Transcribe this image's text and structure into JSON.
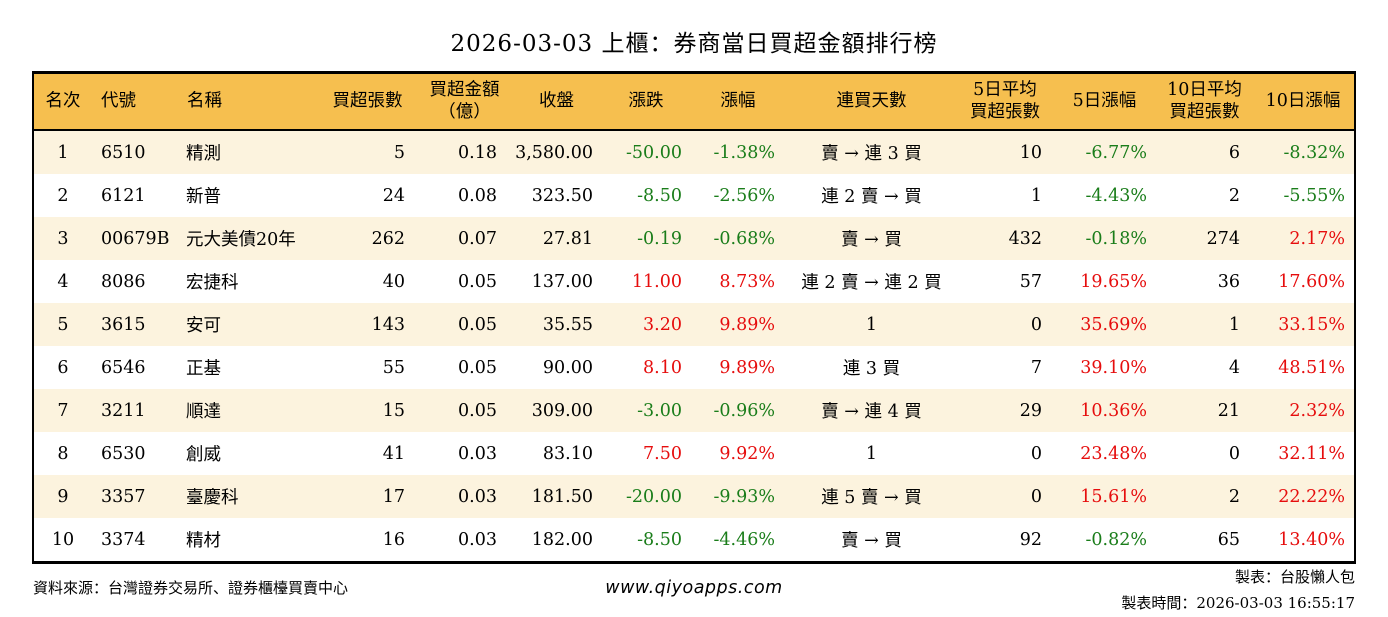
{
  "title": "2026-03-03 上櫃：券商當日買超金額排行榜",
  "colors": {
    "header_bg": "#F6BF4F",
    "row_alt_bg": "#FCF3DE",
    "up_red": "#E60D0D",
    "down_green": "#1A7D1A",
    "border": "#000000"
  },
  "table": {
    "columns": [
      {
        "key": "rank",
        "label": "名次",
        "label2": ""
      },
      {
        "key": "code",
        "label": "代號",
        "label2": ""
      },
      {
        "key": "name",
        "label": "名稱",
        "label2": ""
      },
      {
        "key": "net-buy-lots",
        "label": "買超張數",
        "label2": ""
      },
      {
        "key": "net-buy-amount",
        "label": "買超金額",
        "label2": "（億）"
      },
      {
        "key": "close",
        "label": "收盤",
        "label2": ""
      },
      {
        "key": "change",
        "label": "漲跌",
        "label2": ""
      },
      {
        "key": "change-pct",
        "label": "漲幅",
        "label2": ""
      },
      {
        "key": "buy-streak",
        "label": "連買天數",
        "label2": ""
      },
      {
        "key": "avg5-lots",
        "label": "5日平均",
        "label2": "買超張數"
      },
      {
        "key": "change5-pct",
        "label": "5日漲幅",
        "label2": ""
      },
      {
        "key": "avg10-lots",
        "label": "10日平均",
        "label2": "買超張數"
      },
      {
        "key": "change10-pct",
        "label": "10日漲幅",
        "label2": ""
      }
    ],
    "rows": [
      [
        "1",
        "6510",
        "精測",
        "5",
        "0.18",
        "3,580.00",
        "-50.00",
        "-1.38%",
        "賣 → 連 3 買",
        "10",
        "-6.77%",
        "6",
        "-8.32%"
      ],
      [
        "2",
        "6121",
        "新普",
        "24",
        "0.08",
        "323.50",
        "-8.50",
        "-2.56%",
        "連 2 賣 → 買",
        "1",
        "-4.43%",
        "2",
        "-5.55%"
      ],
      [
        "3",
        "00679B",
        "元大美債20年",
        "262",
        "0.07",
        "27.81",
        "-0.19",
        "-0.68%",
        "賣 → 買",
        "432",
        "-0.18%",
        "274",
        "2.17%"
      ],
      [
        "4",
        "8086",
        "宏捷科",
        "40",
        "0.05",
        "137.00",
        "11.00",
        "8.73%",
        "連 2 賣 → 連 2 買",
        "57",
        "19.65%",
        "36",
        "17.60%"
      ],
      [
        "5",
        "3615",
        "安可",
        "143",
        "0.05",
        "35.55",
        "3.20",
        "9.89%",
        "1",
        "0",
        "35.69%",
        "1",
        "33.15%"
      ],
      [
        "6",
        "6546",
        "正基",
        "55",
        "0.05",
        "90.00",
        "8.10",
        "9.89%",
        "連 3 買",
        "7",
        "39.10%",
        "4",
        "48.51%"
      ],
      [
        "7",
        "3211",
        "順達",
        "15",
        "0.05",
        "309.00",
        "-3.00",
        "-0.96%",
        "賣 → 連 4 買",
        "29",
        "10.36%",
        "21",
        "2.32%"
      ],
      [
        "8",
        "6530",
        "創威",
        "41",
        "0.03",
        "83.10",
        "7.50",
        "9.92%",
        "1",
        "0",
        "23.48%",
        "0",
        "32.11%"
      ],
      [
        "9",
        "3357",
        "臺慶科",
        "17",
        "0.03",
        "181.50",
        "-20.00",
        "-9.93%",
        "連 5 賣 → 買",
        "0",
        "15.61%",
        "2",
        "22.22%"
      ],
      [
        "10",
        "3374",
        "精材",
        "16",
        "0.03",
        "182.00",
        "-8.50",
        "-4.46%",
        "賣 → 買",
        "92",
        "-0.82%",
        "65",
        "13.40%"
      ]
    ]
  },
  "footer": {
    "source": "資料來源：台灣證券交易所、證券櫃檯買賣中心",
    "url": "www.qiyoapps.com",
    "credit": "製表：台股懶人包",
    "timestamp": "製表時間：2026-03-03 16:55:17"
  },
  "chart_data": {
    "type": "table",
    "title": "2026-03-03 上櫃：券商當日買超金額排行榜",
    "columns": [
      "名次",
      "代號",
      "名稱",
      "買超張數",
      "買超金額（億）",
      "收盤",
      "漲跌",
      "漲幅",
      "連買天數",
      "5日平均買超張數",
      "5日漲幅",
      "10日平均買超張數",
      "10日漲幅"
    ],
    "rows": [
      [
        "1",
        "6510",
        "精測",
        "5",
        "0.18",
        "3,580.00",
        "-50.00",
        "-1.38%",
        "賣 → 連 3 買",
        "10",
        "-6.77%",
        "6",
        "-8.32%"
      ],
      [
        "2",
        "6121",
        "新普",
        "24",
        "0.08",
        "323.50",
        "-8.50",
        "-2.56%",
        "連 2 賣 → 買",
        "1",
        "-4.43%",
        "2",
        "-5.55%"
      ],
      [
        "3",
        "00679B",
        "元大美債20年",
        "262",
        "0.07",
        "27.81",
        "-0.19",
        "-0.68%",
        "賣 → 買",
        "432",
        "-0.18%",
        "274",
        "2.17%"
      ],
      [
        "4",
        "8086",
        "宏捷科",
        "40",
        "0.05",
        "137.00",
        "11.00",
        "8.73%",
        "連 2 賣 → 連 2 買",
        "57",
        "19.65%",
        "36",
        "17.60%"
      ],
      [
        "5",
        "3615",
        "安可",
        "143",
        "0.05",
        "35.55",
        "3.20",
        "9.89%",
        "1",
        "0",
        "35.69%",
        "1",
        "33.15%"
      ],
      [
        "6",
        "6546",
        "正基",
        "55",
        "0.05",
        "90.00",
        "8.10",
        "9.89%",
        "連 3 買",
        "7",
        "39.10%",
        "4",
        "48.51%"
      ],
      [
        "7",
        "3211",
        "順達",
        "15",
        "0.05",
        "309.00",
        "-3.00",
        "-0.96%",
        "賣 → 連 4 買",
        "29",
        "10.36%",
        "21",
        "2.32%"
      ],
      [
        "8",
        "6530",
        "創威",
        "41",
        "0.03",
        "83.10",
        "7.50",
        "9.92%",
        "1",
        "0",
        "23.48%",
        "0",
        "32.11%"
      ],
      [
        "9",
        "3357",
        "臺慶科",
        "17",
        "0.03",
        "181.50",
        "-20.00",
        "-9.93%",
        "連 5 賣 → 買",
        "0",
        "15.61%",
        "2",
        "22.22%"
      ],
      [
        "10",
        "3374",
        "精材",
        "16",
        "0.03",
        "182.00",
        "-8.50",
        "-4.46%",
        "賣 → 買",
        "92",
        "-0.82%",
        "65",
        "13.40%"
      ]
    ],
    "legend_position": "none",
    "grid": false,
    "notes": "red = rise (Taiwan convention), green = decline; colored columns: 漲跌, 漲幅, 5日漲幅, 10日漲幅"
  }
}
